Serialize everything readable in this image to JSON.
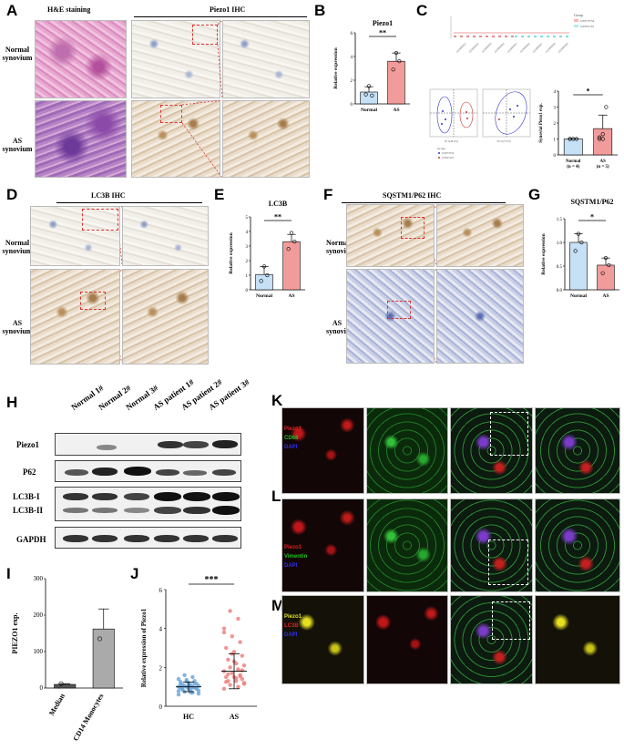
{
  "panels": {
    "A": "A",
    "B": "B",
    "C": "C",
    "D": "D",
    "E": "E",
    "F": "F",
    "G": "G",
    "H": "H",
    "I": "I",
    "J": "J",
    "K": "K",
    "L": "L",
    "M": "M"
  },
  "panelA": {
    "col1": "H&E staining",
    "col2": "Piezo1  IHC",
    "row1": "Normal\nsynovium",
    "row2": "AS\nsynovium"
  },
  "panelD": {
    "title": "LC3B  IHC",
    "row1": "Normal\nsynovium",
    "row2": "AS\nsynovium"
  },
  "panelF": {
    "title": "SQSTM1/P62  IHC",
    "row1": "Normal\nsynovium",
    "row2": "AS\nsynovium"
  },
  "panelH": {
    "lanes": [
      "Normal 1#",
      "Normal 2#",
      "Normal 3#",
      "AS patient 1#",
      "AS patient 2#",
      "AS patient 3#"
    ],
    "rows": [
      "Piezo1",
      "P62",
      "LC3B-I",
      "LC3B-II",
      "GAPDH"
    ]
  },
  "panelK": {
    "labels": [
      "Piezo1",
      "CD68",
      "DAPI"
    ],
    "colors": [
      "#e02020",
      "#20c020",
      "#3030e0"
    ]
  },
  "panelL": {
    "labels": [
      "Piezo1",
      "Vimentin",
      "DAPI"
    ],
    "colors": [
      "#e02020",
      "#20c020",
      "#3030e0"
    ]
  },
  "panelM": {
    "labels": [
      "Piezo1",
      "LC3B",
      "DAPI"
    ],
    "colors": [
      "#e0e020",
      "#e02020",
      "#3030e0"
    ]
  },
  "panelC_tiny": {
    "group_title": "Group",
    "legend": [
      "GSE73754",
      "GSE25101"
    ],
    "pca_group_title": "Group",
    "pca_legend": [
      "GSE73754",
      "GSE25101"
    ]
  },
  "chart_data": [
    {
      "panel": "B",
      "type": "bar",
      "title": "Piezo1",
      "ylabel": "Relative expression",
      "categories": [
        "Normal",
        "AS"
      ],
      "values": [
        1.0,
        3.6
      ],
      "error": [
        0.45,
        0.7
      ],
      "points": [
        [
          0.8,
          1.5,
          0.7
        ],
        [
          2.9,
          4.3,
          3.6
        ]
      ],
      "colors": [
        "#c6e0f5",
        "#f29b9b"
      ],
      "ylim": [
        0,
        6
      ],
      "yticks": [
        0,
        2,
        4,
        6
      ],
      "significance": "**"
    },
    {
      "panel": "C",
      "type": "bar",
      "ylabel": "Synovial Piezo1 exp.",
      "categories": [
        "Normal\n(n = 4)",
        "AS\n(n = 5)"
      ],
      "values": [
        1.0,
        1.65
      ],
      "error": [
        0.02,
        0.85
      ],
      "points": [
        [
          1,
          1,
          1,
          1
        ],
        [
          1.0,
          1.0,
          3.0,
          1.1,
          1.3
        ]
      ],
      "colors": [
        "#c6e0f5",
        "#f29b9b"
      ],
      "ylim": [
        0,
        4
      ],
      "yticks": [
        0,
        1,
        2,
        3,
        4
      ],
      "significance": "*"
    },
    {
      "panel": "E",
      "type": "bar",
      "title": "LC3B",
      "ylabel": "Relative expression",
      "categories": [
        "Normal",
        "AS"
      ],
      "values": [
        1.05,
        3.3
      ],
      "error": [
        0.55,
        0.5
      ],
      "points": [
        [
          0.6,
          1.6,
          1.0
        ],
        [
          2.8,
          3.9,
          3.3
        ]
      ],
      "colors": [
        "#c6e0f5",
        "#f29b9b"
      ],
      "ylim": [
        0,
        5
      ],
      "yticks": [
        0,
        1,
        2,
        3,
        4,
        5
      ],
      "significance": "**"
    },
    {
      "panel": "G",
      "type": "bar",
      "title": "SQSTM1/P62",
      "ylabel": "Relative expression",
      "categories": [
        "Normal",
        "AS"
      ],
      "values": [
        1.0,
        0.52
      ],
      "error": [
        0.18,
        0.15
      ],
      "points": [
        [
          0.82,
          1.18,
          1.0
        ],
        [
          0.35,
          0.67,
          0.52
        ]
      ],
      "colors": [
        "#c6e0f5",
        "#f29b9b"
      ],
      "ylim": [
        0,
        1.5
      ],
      "yticks": [
        "0.0",
        "0.5",
        "1.0",
        "1.5"
      ],
      "significance": "*"
    },
    {
      "panel": "I",
      "type": "bar",
      "ylabel": "PIEZO1 exp.",
      "categories": [
        "Median",
        "CD14 Monocytes"
      ],
      "values": [
        10,
        162
      ],
      "error": [
        2,
        55
      ],
      "points": [
        [
          12
        ],
        [
          135
        ]
      ],
      "colors": [
        "#555555",
        "#aaaaaa"
      ],
      "ylim": [
        0,
        300
      ],
      "yticks": [
        0,
        100,
        200,
        300
      ]
    },
    {
      "panel": "J",
      "type": "scatter",
      "ylabel": "Relative expression of Piezo1",
      "categories": [
        "HC",
        "AS"
      ],
      "mean": [
        1.0,
        1.8
      ],
      "sd": [
        0.25,
        0.9
      ],
      "ylim": [
        0,
        6
      ],
      "yticks": [
        0,
        2,
        4,
        6
      ],
      "significance": "***",
      "colors": [
        "#6fa8dc",
        "#f08080"
      ],
      "points": [
        [
          0.6,
          0.7,
          0.75,
          0.8,
          0.85,
          0.85,
          0.9,
          0.9,
          0.95,
          0.95,
          1.0,
          1.0,
          1.0,
          1.05,
          1.05,
          1.1,
          1.1,
          1.15,
          1.2,
          1.25,
          1.3,
          1.35,
          1.4,
          1.5,
          1.6,
          0.65,
          0.72,
          0.88,
          0.92,
          1.02,
          1.12,
          1.18,
          1.28,
          0.78,
          0.98
        ],
        [
          0.9,
          1.0,
          1.1,
          1.2,
          1.3,
          1.3,
          1.4,
          1.5,
          1.5,
          1.6,
          1.7,
          1.8,
          1.9,
          2.0,
          2.1,
          2.2,
          2.4,
          2.6,
          2.8,
          3.0,
          3.3,
          3.6,
          4.0,
          4.5,
          4.9,
          1.15,
          1.45,
          1.65,
          1.85,
          2.3,
          1.25,
          1.55,
          2.7,
          3.8
        ]
      ]
    }
  ]
}
